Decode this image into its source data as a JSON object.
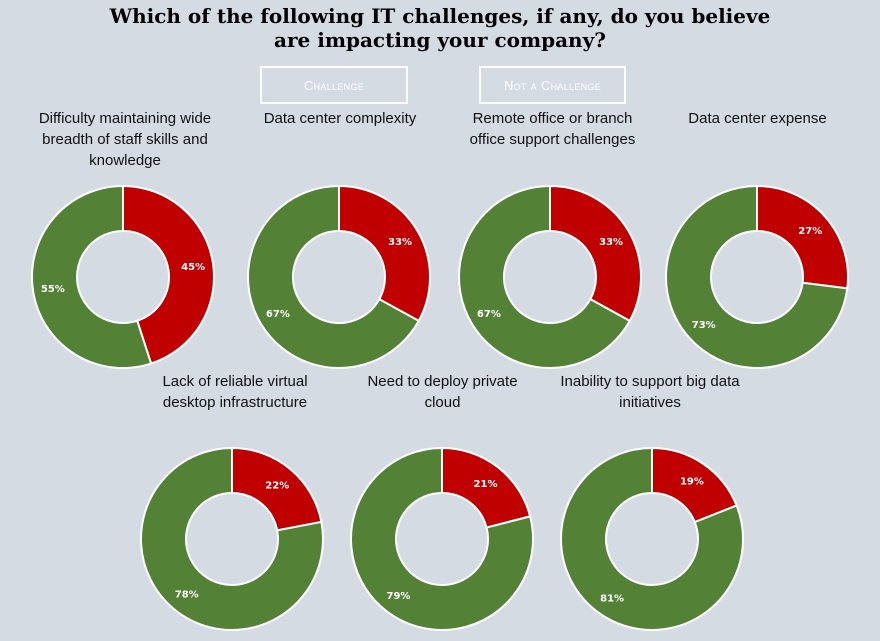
{
  "title": "Which of the following IT challenges, if any, do you believe are impacting your company?",
  "legend": {
    "challenge": {
      "label": "Challenge",
      "color": "#c00000"
    },
    "not_challenge": {
      "label": "Not a Challenge",
      "color": "#538135"
    }
  },
  "chart_data": [
    {
      "type": "pie",
      "title": "Difficulty maintaining wide breadth of staff skills and knowledge",
      "categories": [
        "Challenge",
        "Not a Challenge"
      ],
      "values": [
        45,
        55
      ],
      "labels": [
        "45%",
        "55%"
      ]
    },
    {
      "type": "pie",
      "title": "Data center complexity",
      "categories": [
        "Challenge",
        "Not a Challenge"
      ],
      "values": [
        33,
        67
      ],
      "labels": [
        "33%",
        "67%"
      ]
    },
    {
      "type": "pie",
      "title": "Remote office or branch office support challenges",
      "categories": [
        "Challenge",
        "Not a Challenge"
      ],
      "values": [
        33,
        67
      ],
      "labels": [
        "33%",
        "67%"
      ]
    },
    {
      "type": "pie",
      "title": "Data center expense",
      "categories": [
        "Challenge",
        "Not a Challenge"
      ],
      "values": [
        27,
        73
      ],
      "labels": [
        "27%",
        "73%"
      ]
    },
    {
      "type": "pie",
      "title": "Lack of reliable virtual desktop infrastructure",
      "categories": [
        "Challenge",
        "Not a Challenge"
      ],
      "values": [
        22,
        78
      ],
      "labels": [
        "22%",
        "78%"
      ]
    },
    {
      "type": "pie",
      "title": "Need to deploy private cloud",
      "categories": [
        "Challenge",
        "Not a Challenge"
      ],
      "values": [
        21,
        79
      ],
      "labels": [
        "21%",
        "79%"
      ]
    },
    {
      "type": "pie",
      "title": "Inability to support big data initiatives",
      "categories": [
        "Challenge",
        "Not a Challenge"
      ],
      "values": [
        19,
        81
      ],
      "labels": [
        "19%",
        "81%"
      ]
    }
  ]
}
